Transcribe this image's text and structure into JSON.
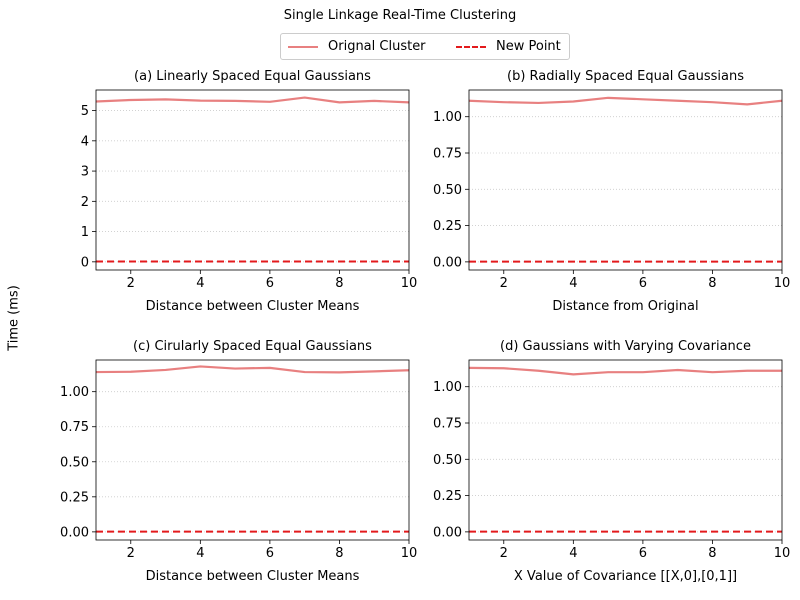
{
  "suptitle": "Single Linkage Real-Time Clustering",
  "shared_ylabel": "Time (ms)",
  "legend": [
    {
      "label": "Orignal Cluster",
      "color": "#e88080",
      "style": "solid"
    },
    {
      "label": "New Point",
      "color": "#e31a1c",
      "style": "dashed"
    }
  ],
  "chart_data": [
    {
      "type": "line",
      "title": "(a) Linearly Spaced Equal Gaussians",
      "xlabel": "Distance between Cluster Means",
      "ylabel": "",
      "xlim": [
        1,
        10
      ],
      "ylim": [
        -0.27,
        5.68
      ],
      "xticks": [
        2,
        4,
        6,
        8,
        10
      ],
      "yticks": [
        0,
        1,
        2,
        3,
        4,
        5
      ],
      "ytick_labels": [
        "0",
        "1",
        "2",
        "3",
        "4",
        "5"
      ],
      "grid": "y-dotted",
      "x": [
        1,
        2,
        3,
        4,
        5,
        6,
        7,
        8,
        9,
        10
      ],
      "series": [
        {
          "name": "Orignal Cluster",
          "values": [
            5.3,
            5.35,
            5.37,
            5.33,
            5.32,
            5.29,
            5.43,
            5.27,
            5.32,
            5.27
          ]
        },
        {
          "name": "New Point",
          "values": [
            0.01,
            0.01,
            0.01,
            0.01,
            0.01,
            0.01,
            0.01,
            0.01,
            0.01,
            0.01
          ]
        }
      ]
    },
    {
      "type": "line",
      "title": "(b) Radially Spaced Equal Gaussians",
      "xlabel": "Distance from Original",
      "ylabel": "",
      "xlim": [
        1,
        10
      ],
      "ylim": [
        -0.056,
        1.184
      ],
      "xticks": [
        2,
        4,
        6,
        8,
        10
      ],
      "yticks": [
        0,
        0.25,
        0.5,
        0.75,
        1.0
      ],
      "ytick_labels": [
        "0.00",
        "0.25",
        "0.50",
        "0.75",
        "1.00"
      ],
      "grid": "y-dotted",
      "x": [
        1,
        2,
        3,
        4,
        5,
        6,
        7,
        8,
        9,
        10
      ],
      "series": [
        {
          "name": "Orignal Cluster",
          "values": [
            1.11,
            1.1,
            1.095,
            1.105,
            1.13,
            1.12,
            1.11,
            1.1,
            1.085,
            1.11
          ]
        },
        {
          "name": "New Point",
          "values": [
            0.002,
            0.002,
            0.002,
            0.002,
            0.002,
            0.002,
            0.002,
            0.002,
            0.002,
            0.002
          ]
        }
      ]
    },
    {
      "type": "line",
      "title": "(c) Cirularly Spaced Equal Gaussians",
      "xlabel": "Distance between Cluster Means",
      "ylabel": "",
      "xlim": [
        1,
        10
      ],
      "ylim": [
        -0.058,
        1.226
      ],
      "xticks": [
        2,
        4,
        6,
        8,
        10
      ],
      "yticks": [
        0,
        0.25,
        0.5,
        0.75,
        1.0
      ],
      "ytick_labels": [
        "0.00",
        "0.25",
        "0.50",
        "0.75",
        "1.00"
      ],
      "grid": "y-dotted",
      "x": [
        1,
        2,
        3,
        4,
        5,
        6,
        7,
        8,
        9,
        10
      ],
      "series": [
        {
          "name": "Orignal Cluster",
          "values": [
            1.14,
            1.142,
            1.155,
            1.18,
            1.165,
            1.17,
            1.14,
            1.138,
            1.145,
            1.153
          ]
        },
        {
          "name": "New Point",
          "values": [
            0.002,
            0.002,
            0.002,
            0.002,
            0.002,
            0.002,
            0.002,
            0.002,
            0.002,
            0.002
          ]
        }
      ]
    },
    {
      "type": "line",
      "title": "(d) Gaussians with Varying Covariance",
      "xlabel": "X Value of Covariance [[X,0],[0,1]]",
      "ylabel": "",
      "xlim": [
        1,
        10
      ],
      "ylim": [
        -0.056,
        1.184
      ],
      "xticks": [
        2,
        4,
        6,
        8,
        10
      ],
      "yticks": [
        0,
        0.25,
        0.5,
        0.75,
        1.0
      ],
      "ytick_labels": [
        "0.00",
        "0.25",
        "0.50",
        "0.75",
        "1.00"
      ],
      "grid": "y-dotted",
      "x": [
        1,
        2,
        3,
        4,
        5,
        6,
        7,
        8,
        9,
        10
      ],
      "series": [
        {
          "name": "Orignal Cluster",
          "values": [
            1.13,
            1.127,
            1.11,
            1.085,
            1.1,
            1.1,
            1.115,
            1.1,
            1.11,
            1.11
          ]
        },
        {
          "name": "New Point",
          "values": [
            0.002,
            0.002,
            0.002,
            0.002,
            0.002,
            0.002,
            0.002,
            0.002,
            0.002,
            0.002
          ]
        }
      ]
    }
  ]
}
